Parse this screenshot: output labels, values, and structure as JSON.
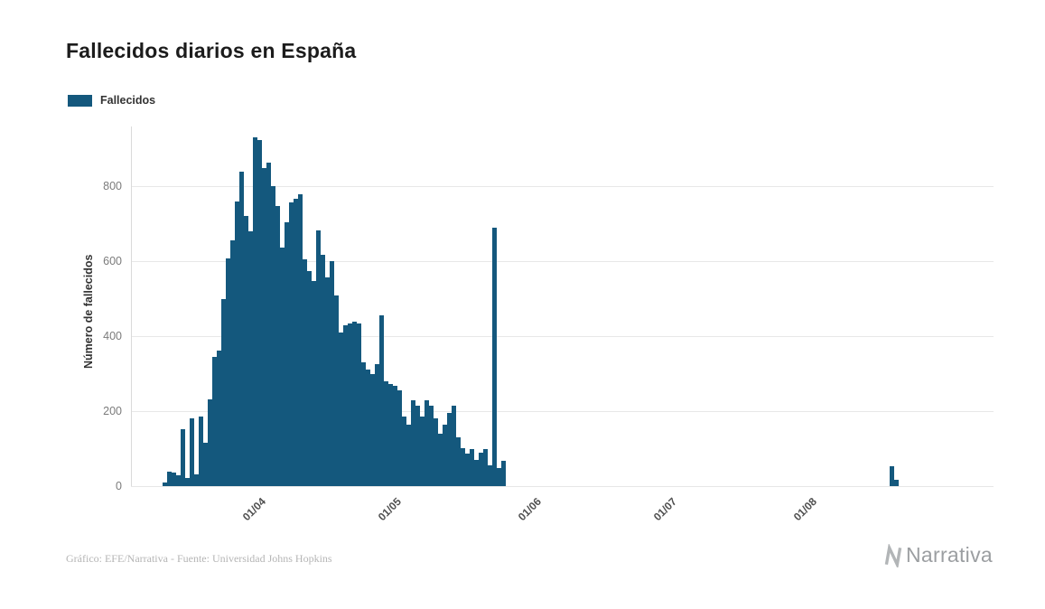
{
  "page": {
    "title": "Fallecidos diarios en España",
    "credit": "Gráfico: EFE/Narrativa - Fuente: Universidad Johns Hopkins",
    "brand": "Narrativa"
  },
  "legend": {
    "label": "Fallecidos"
  },
  "chart_data": {
    "type": "bar",
    "title": "Fallecidos diarios en España",
    "series_name": "Fallecidos",
    "xlabel": "",
    "ylabel": "Número de fallecidos",
    "bar_color": "#14587d",
    "grid": "horizontal",
    "legend_position": "top-left",
    "ylim": [
      0,
      960
    ],
    "y_ticks": [
      0,
      200,
      400,
      600,
      800
    ],
    "start_date": "2020-03-04",
    "x_ticks": [
      {
        "label": "01/04",
        "day_index": 28
      },
      {
        "label": "01/05",
        "day_index": 58
      },
      {
        "label": "01/06",
        "day_index": 89
      },
      {
        "label": "01/07",
        "day_index": 119
      },
      {
        "label": "01/08",
        "day_index": 150
      }
    ],
    "values": [
      0,
      0,
      0,
      0,
      0,
      0,
      0,
      10,
      38,
      36,
      28,
      151,
      21,
      182,
      32,
      186,
      116,
      232,
      345,
      362,
      500,
      608,
      655,
      760,
      840,
      722,
      680,
      930,
      923,
      850,
      864,
      800,
      748,
      637,
      704,
      757,
      767,
      780,
      605,
      574,
      547,
      683,
      618,
      558,
      600,
      510,
      410,
      430,
      435,
      440,
      435,
      330,
      310,
      300,
      325,
      455,
      280,
      272,
      268,
      255,
      185,
      164,
      230,
      214,
      185,
      230,
      214,
      180,
      140,
      165,
      195,
      215,
      130,
      102,
      88,
      100,
      70,
      90,
      100,
      56,
      690,
      48,
      68,
      0,
      0,
      0,
      0,
      0,
      0,
      0,
      0,
      0,
      0,
      0,
      0,
      0,
      0,
      0,
      0,
      0,
      0,
      0,
      0,
      0,
      0,
      0,
      0,
      0,
      0,
      0,
      0,
      0,
      0,
      0,
      0,
      0,
      0,
      0,
      0,
      0,
      0,
      0,
      0,
      0,
      0,
      0,
      0,
      0,
      0,
      0,
      0,
      0,
      0,
      0,
      0,
      0,
      0,
      0,
      0,
      0,
      0,
      0,
      0,
      0,
      0,
      0,
      0,
      0,
      0,
      0,
      0,
      0,
      0,
      0,
      0,
      0,
      0,
      0,
      0,
      0,
      0,
      0,
      0,
      0,
      0,
      0,
      0,
      0,
      52,
      16,
      0,
      0,
      0,
      0,
      0,
      0,
      0,
      0,
      0,
      0,
      0,
      0,
      0,
      0,
      0,
      0,
      0,
      0,
      0,
      0,
      0
    ]
  }
}
